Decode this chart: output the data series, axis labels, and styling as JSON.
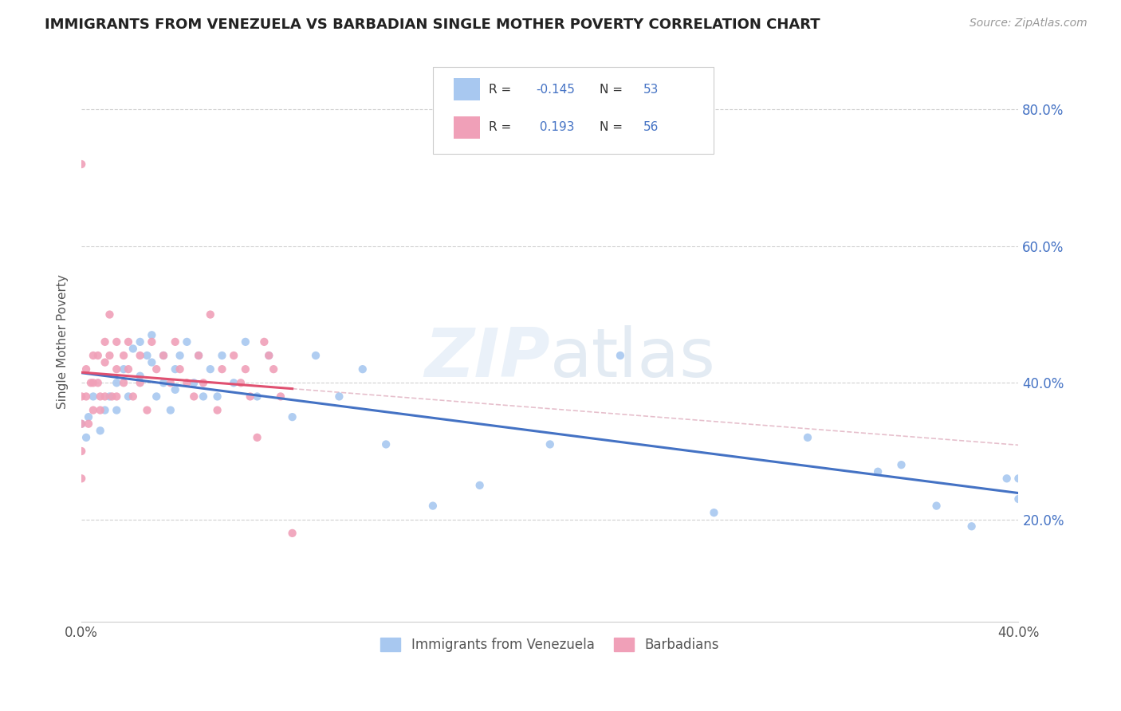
{
  "title": "IMMIGRANTS FROM VENEZUELA VS BARBADIAN SINGLE MOTHER POVERTY CORRELATION CHART",
  "source": "Source: ZipAtlas.com",
  "ylabel": "Single Mother Poverty",
  "legend_label1": "Immigrants from Venezuela",
  "legend_label2": "Barbadians",
  "R1": -0.145,
  "N1": 53,
  "R2": 0.193,
  "N2": 56,
  "scatter1_color": "#a8c8f0",
  "scatter2_color": "#f0a0b8",
  "trend1_color": "#4472c4",
  "trend2_color": "#e05070",
  "background_color": "#ffffff",
  "xlim": [
    0.0,
    0.4
  ],
  "ylim": [
    0.05,
    0.87
  ],
  "yticks": [
    0.2,
    0.4,
    0.6,
    0.8
  ],
  "ytick_labels": [
    "20.0%",
    "40.0%",
    "60.0%",
    "80.0%"
  ],
  "scatter1_x": [
    0.0,
    0.002,
    0.003,
    0.005,
    0.008,
    0.01,
    0.012,
    0.015,
    0.015,
    0.018,
    0.02,
    0.022,
    0.025,
    0.025,
    0.028,
    0.03,
    0.03,
    0.032,
    0.035,
    0.035,
    0.038,
    0.04,
    0.04,
    0.042,
    0.045,
    0.048,
    0.05,
    0.052,
    0.055,
    0.058,
    0.06,
    0.065,
    0.07,
    0.075,
    0.08,
    0.09,
    0.1,
    0.11,
    0.12,
    0.13,
    0.15,
    0.17,
    0.2,
    0.23,
    0.27,
    0.31,
    0.34,
    0.35,
    0.365,
    0.38,
    0.395,
    0.4,
    0.4
  ],
  "scatter1_y": [
    0.34,
    0.32,
    0.35,
    0.38,
    0.33,
    0.36,
    0.38,
    0.4,
    0.36,
    0.42,
    0.38,
    0.45,
    0.41,
    0.46,
    0.44,
    0.43,
    0.47,
    0.38,
    0.44,
    0.4,
    0.36,
    0.39,
    0.42,
    0.44,
    0.46,
    0.4,
    0.44,
    0.38,
    0.42,
    0.38,
    0.44,
    0.4,
    0.46,
    0.38,
    0.44,
    0.35,
    0.44,
    0.38,
    0.42,
    0.31,
    0.22,
    0.25,
    0.31,
    0.44,
    0.21,
    0.32,
    0.27,
    0.28,
    0.22,
    0.19,
    0.26,
    0.23,
    0.26
  ],
  "scatter2_x": [
    0.0,
    0.0,
    0.0,
    0.0,
    0.0,
    0.002,
    0.002,
    0.003,
    0.004,
    0.005,
    0.005,
    0.005,
    0.007,
    0.007,
    0.008,
    0.008,
    0.01,
    0.01,
    0.01,
    0.012,
    0.012,
    0.013,
    0.015,
    0.015,
    0.015,
    0.018,
    0.018,
    0.02,
    0.02,
    0.022,
    0.025,
    0.025,
    0.028,
    0.03,
    0.032,
    0.035,
    0.038,
    0.04,
    0.042,
    0.045,
    0.048,
    0.05,
    0.052,
    0.055,
    0.058,
    0.06,
    0.065,
    0.068,
    0.07,
    0.072,
    0.075,
    0.078,
    0.08,
    0.082,
    0.085,
    0.09
  ],
  "scatter2_y": [
    0.72,
    0.38,
    0.34,
    0.3,
    0.26,
    0.42,
    0.38,
    0.34,
    0.4,
    0.44,
    0.4,
    0.36,
    0.44,
    0.4,
    0.38,
    0.36,
    0.46,
    0.43,
    0.38,
    0.5,
    0.44,
    0.38,
    0.46,
    0.42,
    0.38,
    0.44,
    0.4,
    0.46,
    0.42,
    0.38,
    0.44,
    0.4,
    0.36,
    0.46,
    0.42,
    0.44,
    0.4,
    0.46,
    0.42,
    0.4,
    0.38,
    0.44,
    0.4,
    0.5,
    0.36,
    0.42,
    0.44,
    0.4,
    0.42,
    0.38,
    0.32,
    0.46,
    0.44,
    0.42,
    0.38,
    0.18
  ]
}
